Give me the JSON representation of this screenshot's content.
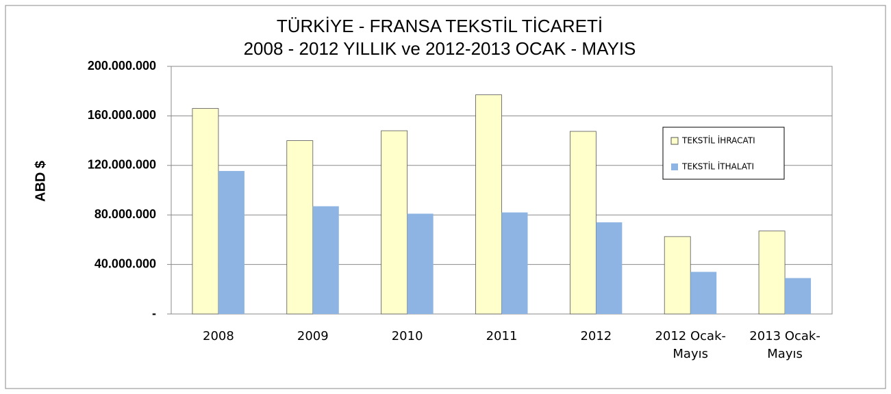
{
  "chart_data": {
    "type": "bar",
    "title": "TÜRKİYE - FRANSA TEKSTİL TİCARETİ",
    "subtitle": "2008 - 2012 YILLIK ve 2012-2013 OCAK - MAYIS",
    "ylabel": "ABD $",
    "categories": [
      "2008",
      "2009",
      "2010",
      "2011",
      "2012",
      "2012 Ocak-Mayıs",
      "2013 Ocak-Mayıs"
    ],
    "series": [
      {
        "name": "TEKSTİL İHRACATI",
        "color": "#ffffcc",
        "values": [
          166000000,
          140000000,
          148000000,
          177000000,
          147500000,
          62500000,
          67000000
        ]
      },
      {
        "name": "TEKSTİL İTHALATI",
        "color": "#8db4e2",
        "values": [
          115500000,
          87000000,
          81000000,
          82000000,
          74000000,
          34000000,
          29000000
        ]
      }
    ],
    "ylim": [
      0,
      200000000
    ],
    "yticks": [
      {
        "value": 0,
        "label": "-"
      },
      {
        "value": 40000000,
        "label": "40.000.000"
      },
      {
        "value": 80000000,
        "label": "80.000.000"
      },
      {
        "value": 120000000,
        "label": "120.000.000"
      },
      {
        "value": 160000000,
        "label": "160.000.000"
      },
      {
        "value": 200000000,
        "label": "200.000.000"
      }
    ],
    "grid": true,
    "legend": "right"
  }
}
